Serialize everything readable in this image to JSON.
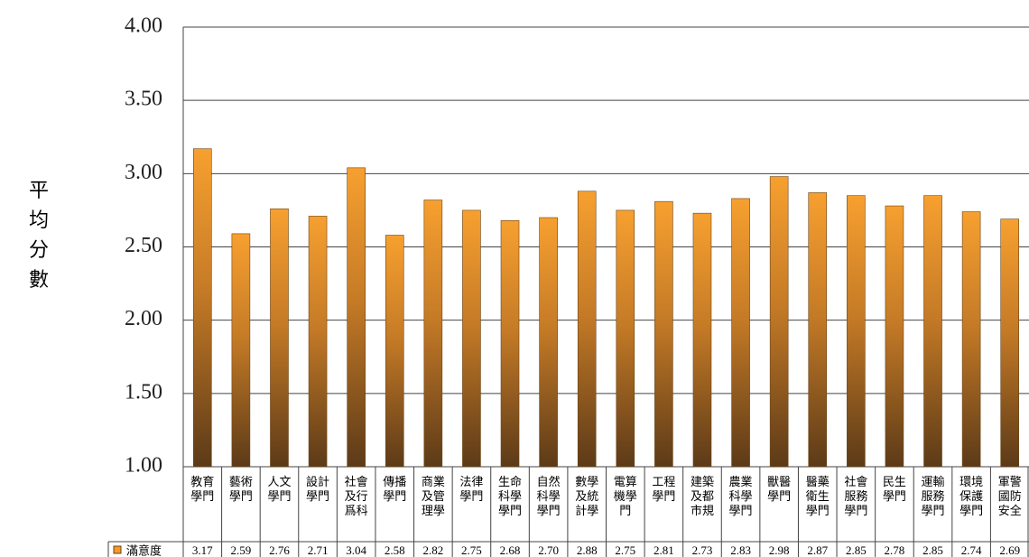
{
  "chart_data": {
    "type": "bar",
    "y_label": "平均分數",
    "categories": [
      "教育學門",
      "藝術學門",
      "人文學門",
      "設計學門",
      "社會及行爲科",
      "傳播學門",
      "商業及管理學",
      "法律學門",
      "生命科學學門",
      "自然科學學門",
      "數學及統計學",
      "電算機學門",
      "工程學門",
      "建築及都市規",
      "農業科學學門",
      "獸醫學門",
      "醫藥衛生學門",
      "社會服務學門",
      "民生學門",
      "運輸服務學門",
      "環境保護學門",
      "軍警國防安全"
    ],
    "series": [
      {
        "name": "滿意度",
        "color": "#f39a2a",
        "values": [
          3.17,
          2.59,
          2.76,
          2.71,
          3.04,
          2.58,
          2.82,
          2.75,
          2.68,
          2.7,
          2.88,
          2.75,
          2.81,
          2.73,
          2.83,
          2.98,
          2.87,
          2.85,
          2.78,
          2.85,
          2.74,
          2.69
        ],
        "value_labels": [
          "3.17",
          "2.59",
          "2.76",
          "2.71",
          "3.04",
          "2.58",
          "2.82",
          "2.75",
          "2.68",
          "2.70",
          "2.88",
          "2.75",
          "2.81",
          "2.73",
          "2.83",
          "2.98",
          "2.87",
          "2.85",
          "2.78",
          "2.85",
          "2.74",
          "2.69"
        ]
      }
    ],
    "ylim": [
      1,
      4
    ],
    "yticks": [
      {
        "value": 1,
        "label": "1.00"
      },
      {
        "value": 1.5,
        "label": "1.50"
      },
      {
        "value": 2,
        "label": "2.00"
      },
      {
        "value": 2.5,
        "label": "2.50"
      },
      {
        "value": 3,
        "label": "3.00"
      },
      {
        "value": 3.5,
        "label": "3.50"
      },
      {
        "value": 4,
        "label": "4.00"
      }
    ],
    "grid": true
  }
}
